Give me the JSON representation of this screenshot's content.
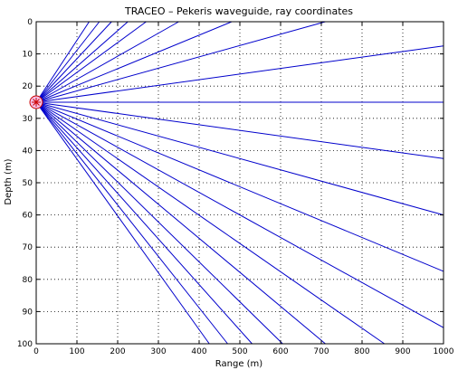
{
  "chart_data": {
    "type": "line",
    "title": "TRACEO – Pekeris waveguide, ray coordinates",
    "xlabel": "Range (m)",
    "ylabel": "Depth (m)",
    "xlim": [
      0,
      1000
    ],
    "ylim": [
      0,
      100
    ],
    "y_reversed": true,
    "x_ticks": [
      0,
      100,
      200,
      300,
      400,
      500,
      600,
      700,
      800,
      900,
      1000
    ],
    "y_ticks": [
      0,
      10,
      20,
      30,
      40,
      50,
      60,
      70,
      80,
      90,
      100
    ],
    "grid": true,
    "line_color": "#0000cc",
    "source": {
      "range": 0,
      "depth": 25,
      "marker": "circle-with-star",
      "fill_color": "#f4c2e8",
      "edge_color": "#cc0000"
    },
    "series": [
      {
        "x": [
          0,
          130
        ],
        "y": [
          25,
          0
        ]
      },
      {
        "x": [
          0,
          155
        ],
        "y": [
          25,
          0
        ]
      },
      {
        "x": [
          0,
          185
        ],
        "y": [
          25,
          0
        ]
      },
      {
        "x": [
          0,
          225
        ],
        "y": [
          25,
          0
        ]
      },
      {
        "x": [
          0,
          270
        ],
        "y": [
          25,
          0
        ]
      },
      {
        "x": [
          0,
          350
        ],
        "y": [
          25,
          0
        ]
      },
      {
        "x": [
          0,
          480
        ],
        "y": [
          25,
          0
        ]
      },
      {
        "x": [
          0,
          710
        ],
        "y": [
          25,
          0
        ]
      },
      {
        "x": [
          0,
          1000
        ],
        "y": [
          25,
          7.5
        ]
      },
      {
        "x": [
          0,
          1000
        ],
        "y": [
          25,
          25
        ]
      },
      {
        "x": [
          0,
          1000
        ],
        "y": [
          25,
          42.5
        ]
      },
      {
        "x": [
          0,
          1000
        ],
        "y": [
          25,
          60
        ]
      },
      {
        "x": [
          0,
          1000
        ],
        "y": [
          25,
          77.5
        ]
      },
      {
        "x": [
          0,
          1000
        ],
        "y": [
          25,
          95
        ]
      },
      {
        "x": [
          0,
          855
        ],
        "y": [
          25,
          100
        ]
      },
      {
        "x": [
          0,
          710
        ],
        "y": [
          25,
          100
        ]
      },
      {
        "x": [
          0,
          605
        ],
        "y": [
          25,
          100
        ]
      },
      {
        "x": [
          0,
          530
        ],
        "y": [
          25,
          100
        ]
      },
      {
        "x": [
          0,
          470
        ],
        "y": [
          25,
          100
        ]
      },
      {
        "x": [
          0,
          425
        ],
        "y": [
          25,
          100
        ]
      }
    ]
  }
}
